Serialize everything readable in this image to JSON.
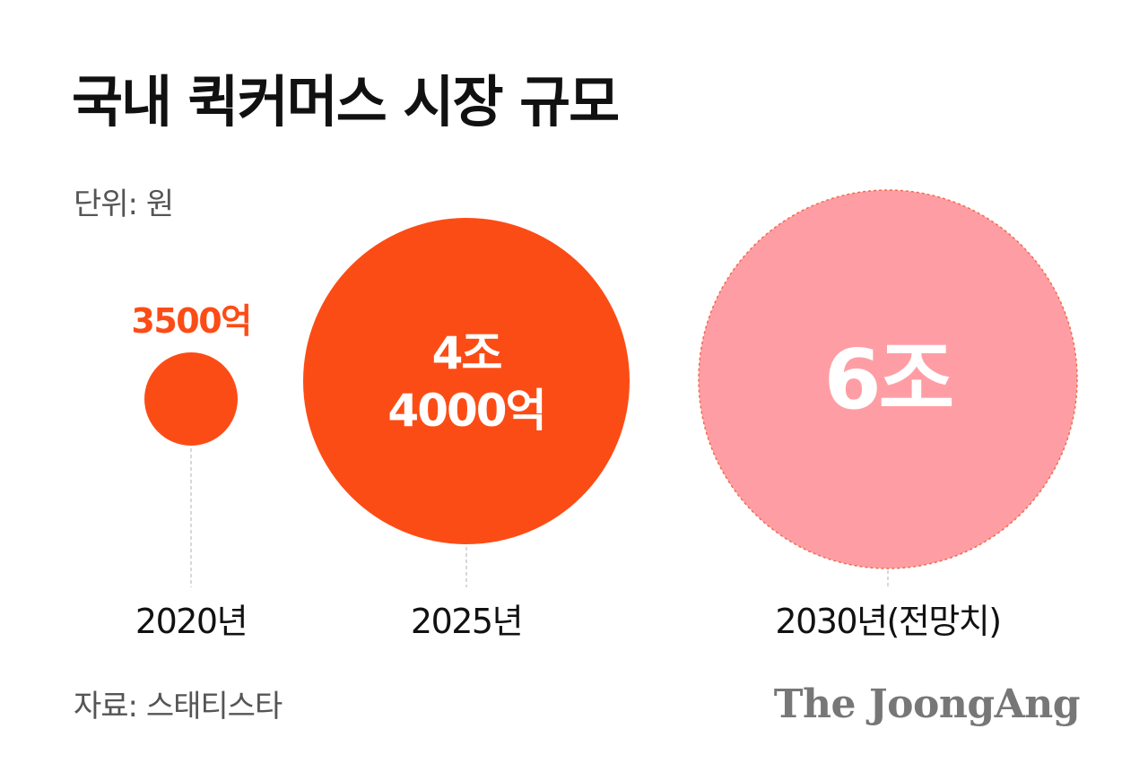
{
  "header": {
    "title": "국내 퀵커머스 시장 규모",
    "unit": "단위: 원"
  },
  "footer": {
    "source": "자료: 스태티스타",
    "logo": "The JoongAng"
  },
  "colors": {
    "primary": "#FC4C16",
    "forecast": "#FE9EA4",
    "forecast_border": "#F26A4B",
    "guide_line": "#CCCCCC"
  },
  "chart_data": {
    "type": "bubble",
    "categories": [
      "2020년",
      "2025년",
      "2030년(전망치)"
    ],
    "values_krw_trillion": [
      0.35,
      4.4,
      6
    ],
    "value_labels": [
      [
        "3500억"
      ],
      [
        "4조",
        "4000억"
      ],
      [
        "6조"
      ]
    ],
    "forecast": [
      false,
      false,
      true
    ]
  }
}
